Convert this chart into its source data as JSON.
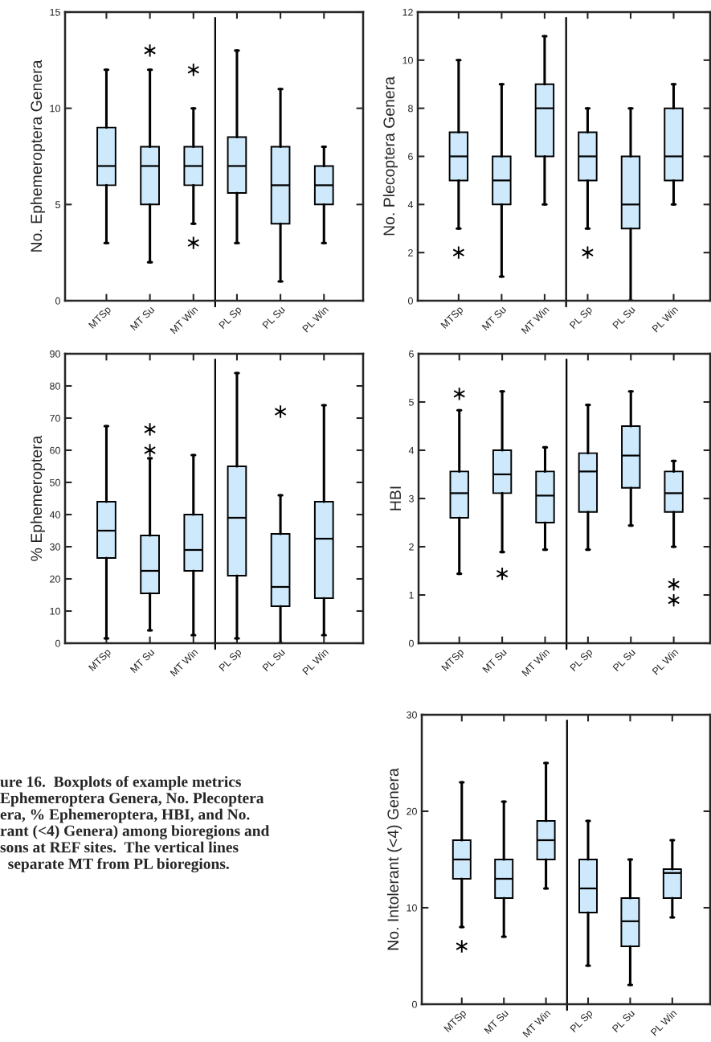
{
  "chart_data": [
    {
      "type": "box",
      "ylabel": "No. Ephemeroptera Genera",
      "categories": [
        "MTSp",
        "MT Su",
        "MT Win",
        "PL Sp",
        "PL Su",
        "PL Win"
      ],
      "color": "#cde9fb",
      "ylim": [
        0,
        15
      ],
      "yticks": [
        0,
        5,
        10,
        15
      ],
      "boxes": [
        {
          "low": 3,
          "q1": 6,
          "median": 7,
          "q3": 9,
          "high": 12
        },
        {
          "low": 2,
          "q1": 5,
          "median": 7,
          "q3": 8,
          "high": 12,
          "outliers": [
            13
          ]
        },
        {
          "low": 4,
          "q1": 6,
          "median": 7,
          "q3": 8,
          "high": 10,
          "outliers": [
            12,
            3
          ]
        },
        {
          "low": 3,
          "q1": 5.6,
          "median": 7,
          "q3": 8.5,
          "high": 13
        },
        {
          "low": 1,
          "q1": 4,
          "median": 6,
          "q3": 8,
          "high": 11
        },
        {
          "low": 3,
          "q1": 5,
          "median": 6,
          "q3": 7,
          "high": 8
        }
      ]
    },
    {
      "type": "box",
      "ylabel": "No. Plecoptera Genera",
      "categories": [
        "MTSp",
        "MT Su",
        "MT Win",
        "PL Sp",
        "PL Su",
        "PL Win"
      ],
      "color": "#cde9fb",
      "ylim": [
        0,
        12
      ],
      "yticks": [
        0,
        2,
        4,
        6,
        8,
        10,
        12
      ],
      "boxes": [
        {
          "low": 3,
          "q1": 5,
          "median": 6,
          "q3": 7,
          "high": 10,
          "outliers": [
            2
          ]
        },
        {
          "low": 1,
          "q1": 4,
          "median": 5,
          "q3": 6,
          "high": 9
        },
        {
          "low": 4,
          "q1": 6,
          "median": 8,
          "q3": 9,
          "high": 11
        },
        {
          "low": 3,
          "q1": 5,
          "median": 6,
          "q3": 7,
          "high": 8,
          "outliers": [
            2
          ]
        },
        {
          "low": 0,
          "q1": 3,
          "median": 4,
          "q3": 6,
          "high": 8
        },
        {
          "low": 4,
          "q1": 5,
          "median": 6,
          "q3": 8,
          "high": 9
        }
      ]
    },
    {
      "type": "box",
      "ylabel": "% Ephemeroptera",
      "categories": [
        "MTSp",
        "MT Su",
        "MT Win",
        "PL Sp",
        "PL Su",
        "PL Win"
      ],
      "color": "#cde9fb",
      "ylim": [
        0,
        90
      ],
      "yticks": [
        0,
        10,
        20,
        30,
        40,
        50,
        60,
        70,
        80,
        90
      ],
      "boxes": [
        {
          "low": 1.5,
          "q1": 26.5,
          "median": 35,
          "q3": 44,
          "high": 67.5
        },
        {
          "low": 4,
          "q1": 15.5,
          "median": 22.5,
          "q3": 33.5,
          "high": 57.5,
          "outliers": [
            60,
            66.5
          ]
        },
        {
          "low": 2.5,
          "q1": 22.5,
          "median": 29,
          "q3": 40,
          "high": 58.5
        },
        {
          "low": 1.5,
          "q1": 21,
          "median": 39,
          "q3": 55,
          "high": 84
        },
        {
          "low": 0,
          "q1": 11.5,
          "median": 17.5,
          "q3": 34,
          "high": 46,
          "outliers": [
            72
          ]
        },
        {
          "low": 2.5,
          "q1": 14,
          "median": 32.5,
          "q3": 44,
          "high": 74
        }
      ]
    },
    {
      "type": "box",
      "ylabel": "HBI",
      "categories": [
        "MTSp",
        "MT Su",
        "MT Win",
        "PL Sp",
        "PL Su",
        "PL Win"
      ],
      "color": "#cde9fb",
      "ylim": [
        0,
        6
      ],
      "yticks": [
        0,
        1,
        2,
        3,
        4,
        5,
        6
      ],
      "boxes": [
        {
          "low": 1.44,
          "q1": 2.6,
          "median": 3.11,
          "q3": 3.56,
          "high": 4.83,
          "outliers": [
            5.17
          ]
        },
        {
          "low": 1.89,
          "q1": 3.11,
          "median": 3.5,
          "q3": 4.0,
          "high": 5.22,
          "outliers": [
            1.44
          ]
        },
        {
          "low": 1.94,
          "q1": 2.5,
          "median": 3.06,
          "q3": 3.56,
          "high": 4.06
        },
        {
          "low": 1.94,
          "q1": 2.72,
          "median": 3.56,
          "q3": 3.94,
          "high": 4.94
        },
        {
          "low": 2.44,
          "q1": 3.22,
          "median": 3.89,
          "q3": 4.5,
          "high": 5.22
        },
        {
          "low": 2.0,
          "q1": 2.72,
          "median": 3.11,
          "q3": 3.56,
          "high": 3.78,
          "outliers": [
            1.22,
            0.89
          ]
        }
      ]
    },
    {
      "type": "box",
      "ylabel": "No. Intolerant (<4) Genera",
      "categories": [
        "MTSp",
        "MT Su",
        "MT Win",
        "PL Sp",
        "PL Su",
        "PL Win"
      ],
      "color": "#cde9fb",
      "ylim": [
        0,
        30
      ],
      "yticks": [
        0,
        10,
        20,
        30
      ],
      "boxes": [
        {
          "low": 8,
          "q1": 13,
          "median": 15,
          "q3": 17,
          "high": 23,
          "outliers": [
            6
          ]
        },
        {
          "low": 7,
          "q1": 11,
          "median": 13,
          "q3": 15,
          "high": 21
        },
        {
          "low": 12,
          "q1": 15,
          "median": 17,
          "q3": 19,
          "high": 25
        },
        {
          "low": 4,
          "q1": 9.5,
          "median": 12,
          "q3": 15,
          "high": 19
        },
        {
          "low": 2,
          "q1": 6,
          "median": 8.6,
          "q3": 11,
          "high": 15
        },
        {
          "low": 9,
          "q1": 11,
          "median": 13.6,
          "q3": 14,
          "high": 17
        }
      ],
      "annotations": [
        "ure 16.  Boxplots of example metrics\nEphemeroptera Genera, No. Plecoptera\nera, % Ephemeroptera, HBI, and No.\nrant (<4) Genera) among bioregions and\nsons at REF sites.  The vertical lines\n  separate MT from PL bioregions."
      ]
    }
  ]
}
